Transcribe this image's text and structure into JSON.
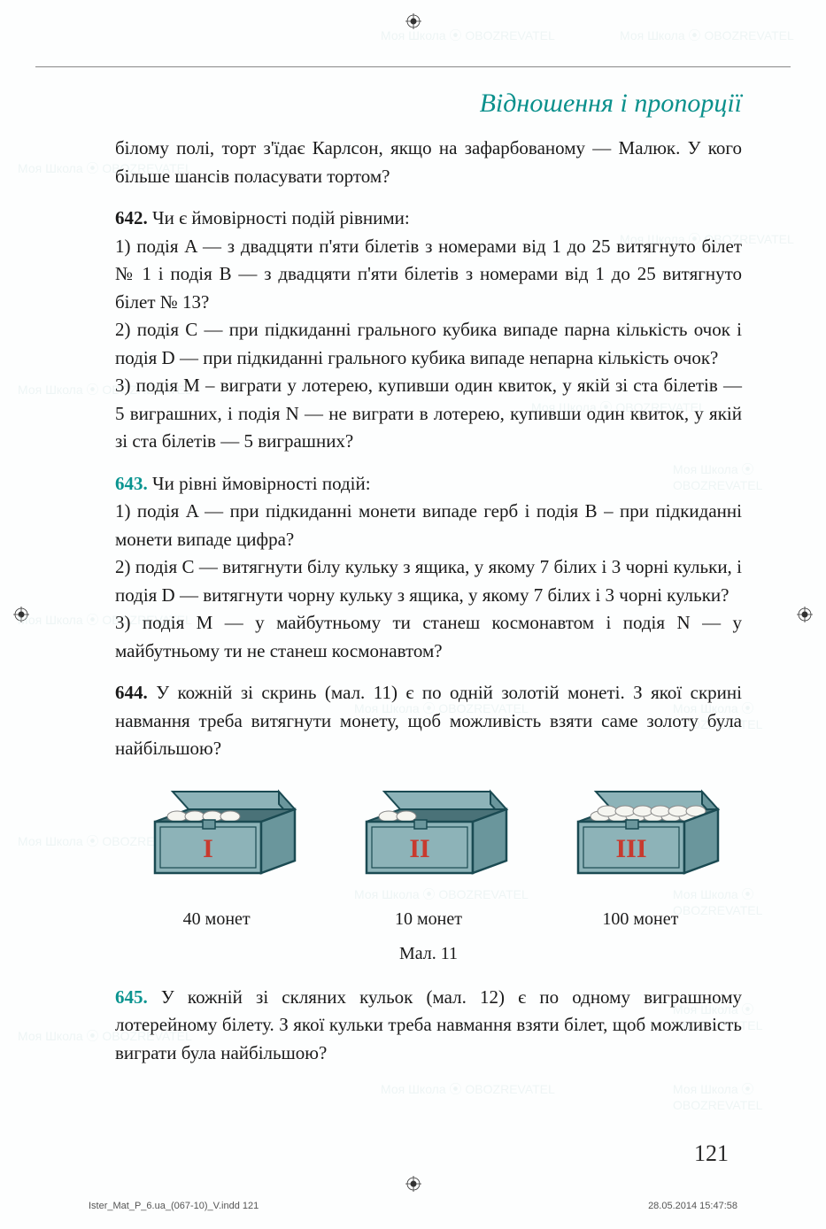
{
  "chapter_title": "Відношення і пропорції",
  "intro": "білому полі, торт з'їдає Карлсон, якщо на зафарбованому — Малюк. У кого більше шансів поласувати тортом?",
  "problems": {
    "p642": {
      "number": "642",
      "lead": "Чи є ймовірності подій рівними:",
      "parts": [
        "1) подія A — з двадцяти п'яти білетів з номерами від 1 до 25 витягнуто білет № 1 і подія B — з двадцяти п'яти білетів з номерами від 1 до 25 витягнуто білет № 13?",
        "2) подія C — при підкиданні грального кубика випаде парна кількість очок і подія D — при підкиданні грального кубика випаде непарна кількість очок?",
        "3) подія M – виграти у лотерею, купивши один квиток, у якій зі ста білетів — 5 виграшних, і подія N — не виграти в лотерею, купивши один квиток, у якій зі ста білетів — 5 виграшних?"
      ]
    },
    "p643": {
      "number": "643",
      "lead": "Чи рівні ймовірності подій:",
      "parts": [
        "1) подія A — при підкиданні монети випаде герб і подія B – при підкиданні монети випаде цифра?",
        "2) подія C — витягнути білу кульку з ящика, у якому 7 білих і 3 чорні кульки, і подія D — витягнути чорну кульку з ящика, у якому 7 білих і 3 чорні кульки?",
        "3) подія M — у майбутньому ти станеш космонавтом і подія N — у майбутньому ти не станеш космонавтом?"
      ]
    },
    "p644": {
      "number": "644",
      "text": "У кожній зі скринь (мал. 11) є по одній золотій монеті. З якої скрині навмання треба витягнути монету, щоб можливість взяти саме золоту була найбільшою?"
    },
    "p645": {
      "number": "645",
      "text": "У кожній зі скляних кульок (мал. 12) є по одному виграшному лотерейному білету. З якої кульки треба навмання взяти білет, щоб можливість виграти була найбільшою?"
    }
  },
  "figure": {
    "chests": [
      {
        "roman": "I",
        "label": "40 монет",
        "coin_count": 4
      },
      {
        "roman": "II",
        "label": "10 монет",
        "coin_count": 2
      },
      {
        "roman": "III",
        "label": "100 монет",
        "coin_count": 12
      }
    ],
    "caption": "Мал. 11",
    "colors": {
      "chest_body": "#8db3b8",
      "chest_body_dark": "#6a969c",
      "chest_border": "#1a4a52",
      "chest_interior": "#4a7278",
      "roman_color": "#c83a2e",
      "coin_fill": "#f5f5f0",
      "coin_stroke": "#888"
    }
  },
  "page_number": "121",
  "footer": {
    "left": "Ister_Mat_P_6.ua_(067-10)_V.indd   121",
    "right": "28.05.2014   15:47:58"
  },
  "watermark_text": "Моя Школа ⦿ OBOZREVATEL"
}
